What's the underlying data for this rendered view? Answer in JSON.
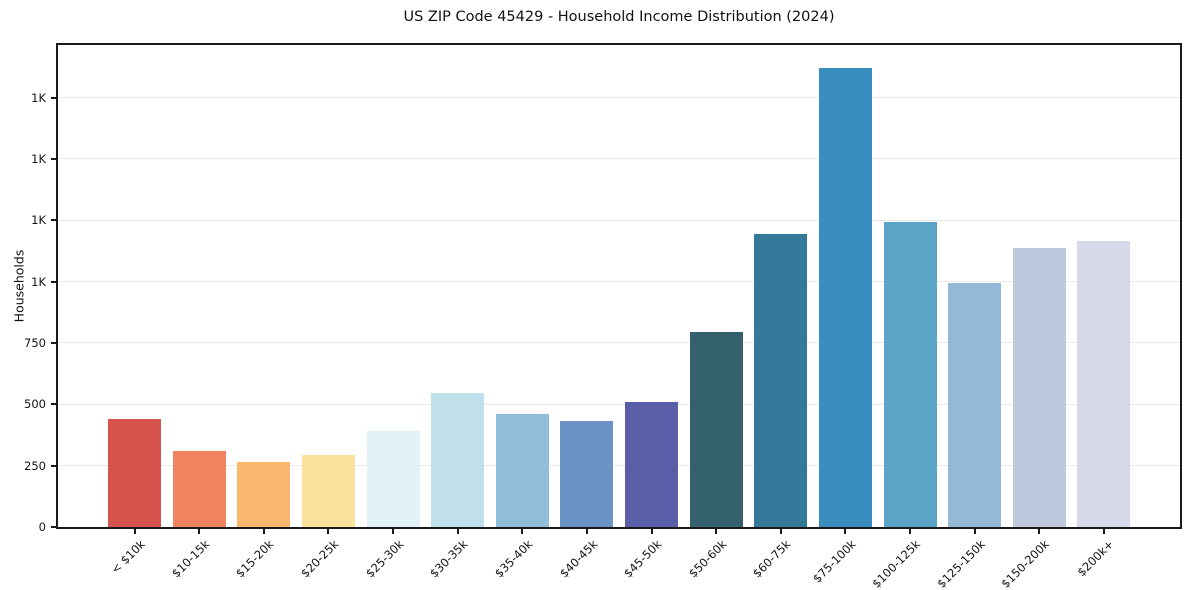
{
  "chart_data": {
    "type": "bar",
    "title": "US ZIP Code 45429 - Household Income Distribution (2024)",
    "xlabel": "",
    "ylabel": "Households",
    "categories": [
      "< $10k",
      "$10-15k",
      "$15-20k",
      "$20-25k",
      "$25-30k",
      "$30-35k",
      "$35-40k",
      "$40-45k",
      "$45-50k",
      "$50-60k",
      "$60-75k",
      "$75-100k",
      "$100-125k",
      "$125-150k",
      "$150-200k",
      "$200k+"
    ],
    "values": [
      440,
      310,
      264,
      293,
      391,
      548,
      460,
      433,
      510,
      795,
      1193,
      1871,
      1242,
      996,
      1136,
      1165
    ],
    "colors": [
      "#d6544d",
      "#f28360",
      "#fcb76e",
      "#fce19c",
      "#e3f2f6",
      "#bfdfeb",
      "#91bcda",
      "#6c93c6",
      "#5a5ea8",
      "#35616f",
      "#34789a",
      "#3a8dbf",
      "#5ba4c8",
      "#94b9d8",
      "#bec9de",
      "#d6d9e7"
    ],
    "ylim": [
      0,
      1964
    ],
    "yticks": [
      {
        "value": 0,
        "label": "0"
      },
      {
        "value": 250,
        "label": "250"
      },
      {
        "value": 500,
        "label": "500"
      },
      {
        "value": 750,
        "label": "750"
      },
      {
        "value": 1000,
        "label": "1K"
      },
      {
        "value": 1250,
        "label": "1K"
      },
      {
        "value": 1500,
        "label": "1K"
      },
      {
        "value": 1750,
        "label": "1K"
      }
    ],
    "grid": "horizontal",
    "grid_color": "#eaeaea",
    "spine_color": "#1a1a1a",
    "background": "#ffffff",
    "legend": "none"
  }
}
